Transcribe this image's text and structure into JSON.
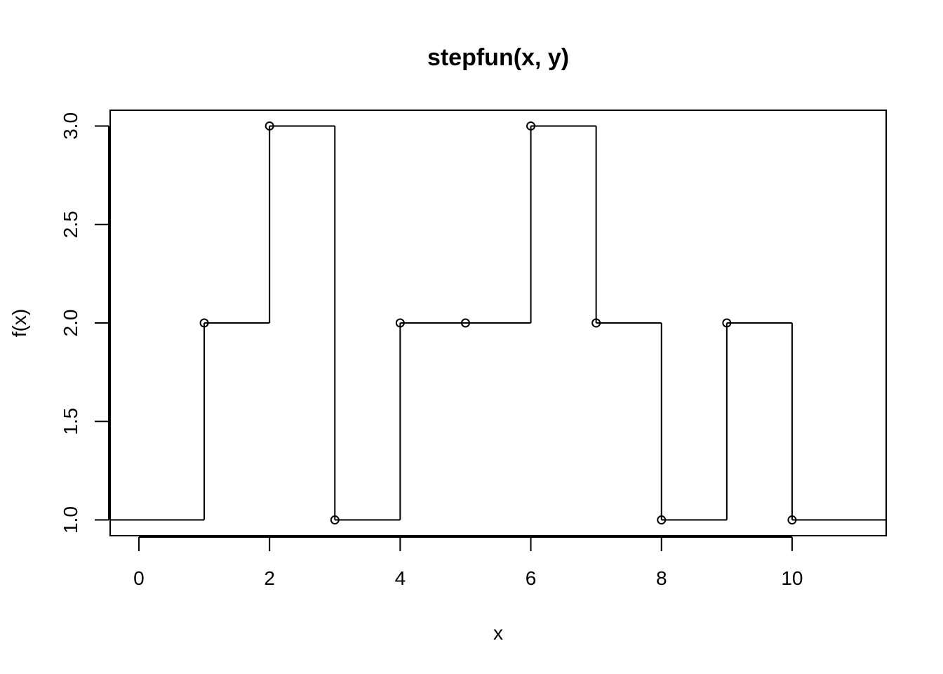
{
  "chart_data": {
    "type": "line",
    "subtype": "step",
    "title": "stepfun(x, y)",
    "xlabel": "x",
    "ylabel": "f(x)",
    "xlim": [
      -0.44,
      11.44
    ],
    "ylim": [
      0.92,
      3.08
    ],
    "x_ticks": [
      0,
      2,
      4,
      6,
      8,
      10
    ],
    "x_tick_labels": [
      "0",
      "2",
      "4",
      "6",
      "8",
      "10"
    ],
    "y_ticks": [
      1.0,
      1.5,
      2.0,
      2.5,
      3.0
    ],
    "y_tick_labels": [
      "1.0",
      "1.5",
      "2.0",
      "2.5",
      "3.0"
    ],
    "y_left": 1,
    "x": [
      1,
      2,
      3,
      4,
      5,
      6,
      7,
      8,
      9,
      10
    ],
    "y": [
      2,
      3,
      1,
      2,
      2,
      3,
      2,
      1,
      2,
      1
    ],
    "grid": false,
    "legend": "none",
    "colors": {
      "line": "#000000",
      "background": "#ffffff"
    }
  }
}
